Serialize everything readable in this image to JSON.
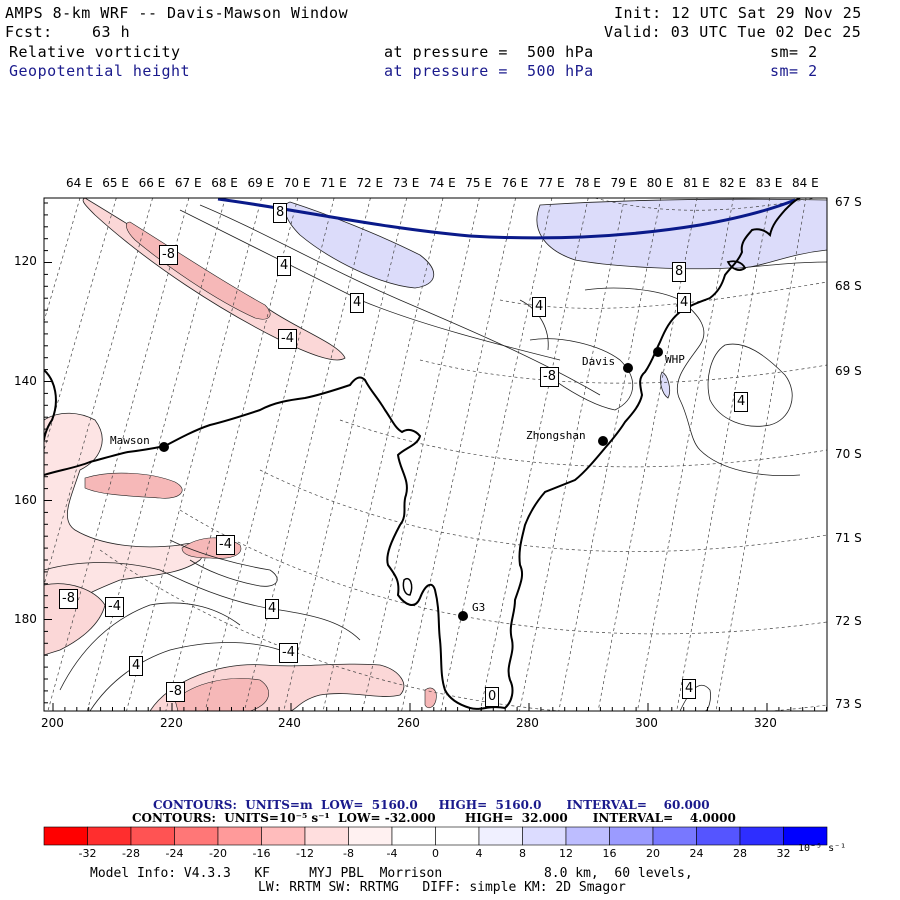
{
  "header": {
    "title": "AMPS 8-km WRF -- Davis-Mawson Window",
    "init": "Init: 12 UTC Sat 29 Nov 25",
    "fcst_label": "Fcst:",
    "fcst_value": "63 h",
    "valid": "Valid: 03 UTC Tue 02 Dec 25",
    "field1": {
      "name": "Relative vorticity",
      "level": "at pressure =  500 hPa",
      "sm": "sm= 2"
    },
    "field2": {
      "name": "Geopotential height",
      "level": "at pressure =  500 hPa",
      "sm": "sm= 2"
    }
  },
  "map": {
    "top_lon_labels": [
      "64 E",
      "65 E",
      "66 E",
      "67 E",
      "68 E",
      "69 E",
      "70 E",
      "71 E",
      "72 E",
      "73 E",
      "74 E",
      "75 E",
      "76 E",
      "77 E",
      "78 E",
      "79 E",
      "80 E",
      "81 E",
      "82 E",
      "83 E",
      "84 E"
    ],
    "right_lat_labels": [
      "67 S",
      "68 S",
      "69 S",
      "70 S",
      "71 S",
      "72 S",
      "73 S"
    ],
    "x_ticks": [
      "200",
      "220",
      "240",
      "260",
      "280",
      "300",
      "320"
    ],
    "y_ticks": [
      "120",
      "140",
      "160",
      "180"
    ],
    "stations": [
      "Mawson",
      "Davis",
      "WHP",
      "Zhongshan",
      "G3"
    ],
    "contour_labels": [
      "8",
      "4",
      "4",
      "4",
      "-8",
      "-4",
      "8",
      "4",
      "4",
      "4",
      "4",
      "-8",
      "-4",
      "-4",
      "-4",
      "-8",
      "4",
      "4",
      "-8",
      "4",
      "0"
    ]
  },
  "footer": {
    "contours1": "CONTOURS:  UNITS=m  LOW=  5160.0     HIGH=  5160.0      INTERVAL=    60.000",
    "contours2": "CONTOURS:  UNITS=10⁻⁵ s⁻¹  LOW= -32.000       HIGH=  32.000      INTERVAL=    4.0000",
    "colorbar_labels": [
      "-32",
      "-28",
      "-24",
      "-20",
      "-16",
      "-12",
      "-8",
      "-4",
      "0",
      "4",
      "8",
      "12",
      "16",
      "20",
      "24",
      "28",
      "32"
    ],
    "units": "10⁻⁵ s⁻¹",
    "colorbar_colors": [
      "#ff0000",
      "#ff2e2e",
      "#ff5353",
      "#ff7777",
      "#ff9a9a",
      "#ffbcbc",
      "#ffdede",
      "#fff1f1",
      "#ffffff",
      "#ffffff",
      "#f0f0ff",
      "#dcdcff",
      "#bdbdff",
      "#9b9bff",
      "#7878ff",
      "#5555ff",
      "#2e2eff",
      "#0000ff"
    ],
    "model_info_1": "Model Info: V4.3.3   KF     MYJ PBL  Morrison             8.0 km,  60 levels,",
    "model_info_2": "LW: RRTM SW: RRTMG   DIFF: simple KM: 2D Smagor"
  },
  "colors": {
    "geopotential": "#0a1a8a",
    "positive_shade": "#dcdcfa",
    "negative_shade": "#fbd7d7",
    "negative_shade_strong": "#f6b8b8"
  }
}
